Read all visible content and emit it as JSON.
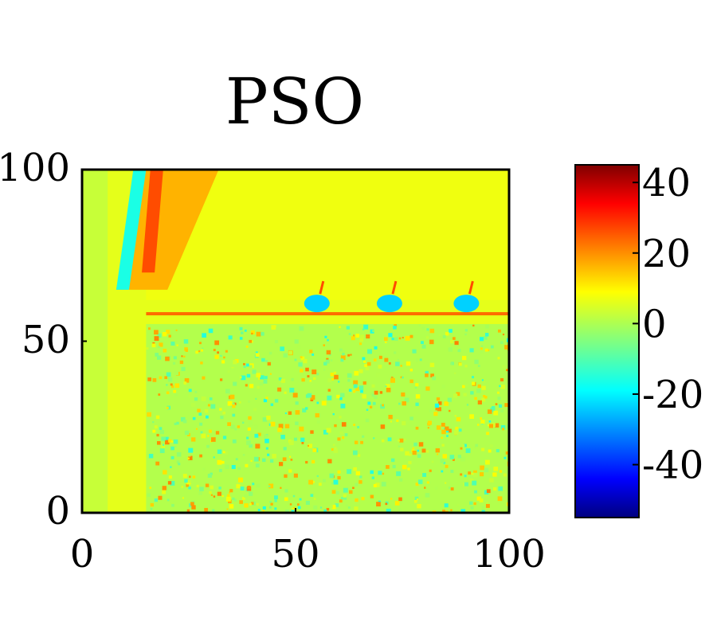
{
  "chart_data": {
    "type": "heatmap",
    "title": "PSO",
    "xlabel": "",
    "ylabel": "",
    "xlim": [
      0,
      100
    ],
    "ylim": [
      0,
      100
    ],
    "x_ticks": [
      "0",
      "50",
      "100"
    ],
    "y_ticks": [
      "0",
      "50",
      "100"
    ],
    "colorbar": {
      "colormap": "jet",
      "range": [
        -55,
        45
      ],
      "ticks": [
        "40",
        "20",
        "0",
        "-20",
        "-40"
      ],
      "tick_values": [
        40,
        20,
        0,
        -20,
        -40
      ]
    },
    "background_value": 5,
    "features": {
      "diagonal_band": {
        "x_range": [
          8,
          32
        ],
        "y_range": [
          65,
          100
        ],
        "value": 15
      },
      "horizontal_line": {
        "y": 58,
        "x_range": [
          15,
          100
        ],
        "value": 22
      },
      "blue_spots": [
        {
          "x": 55,
          "y": 61,
          "value": -22
        },
        {
          "x": 72,
          "y": 61,
          "value": -22
        },
        {
          "x": 90,
          "y": 61,
          "value": -22
        }
      ],
      "noisy_region": {
        "x_range": [
          15,
          100
        ],
        "y_range": [
          0,
          55
        ],
        "value_range": [
          -15,
          20
        ]
      }
    },
    "colors": {
      "dark_red": "#7f0000",
      "red": "#ff0000",
      "orange": "#ff8000",
      "yellow": "#ffff00",
      "green": "#80ff80",
      "cyan": "#00ffff",
      "blue": "#0000ff",
      "dark_blue": "#00007f"
    }
  }
}
